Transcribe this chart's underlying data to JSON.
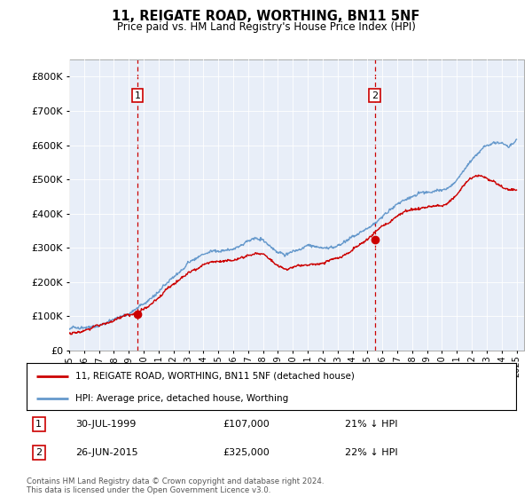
{
  "title": "11, REIGATE ROAD, WORTHING, BN11 5NF",
  "subtitle": "Price paid vs. HM Land Registry's House Price Index (HPI)",
  "legend_line1": "11, REIGATE ROAD, WORTHING, BN11 5NF (detached house)",
  "legend_line2": "HPI: Average price, detached house, Worthing",
  "transaction1": {
    "label": "1",
    "date": "30-JUL-1999",
    "price": 107000,
    "pct": "21% ↓ HPI",
    "x_year": 1999.58
  },
  "transaction2": {
    "label": "2",
    "date": "26-JUN-2015",
    "price": 325000,
    "pct": "22% ↓ HPI",
    "x_year": 2015.49
  },
  "footnote": "Contains HM Land Registry data © Crown copyright and database right 2024.\nThis data is licensed under the Open Government Licence v3.0.",
  "hpi_keypoints_x": [
    1995.0,
    1995.5,
    1996.0,
    1996.5,
    1997.0,
    1997.5,
    1998.0,
    1998.5,
    1999.0,
    1999.5,
    2000.0,
    2000.5,
    2001.0,
    2001.5,
    2002.0,
    2002.5,
    2003.0,
    2003.5,
    2004.0,
    2004.5,
    2005.0,
    2005.5,
    2006.0,
    2006.5,
    2007.0,
    2007.5,
    2008.0,
    2008.5,
    2009.0,
    2009.5,
    2010.0,
    2010.5,
    2011.0,
    2011.5,
    2012.0,
    2012.5,
    2013.0,
    2013.5,
    2014.0,
    2014.5,
    2015.0,
    2015.5,
    2016.0,
    2016.5,
    2017.0,
    2017.5,
    2018.0,
    2018.5,
    2019.0,
    2019.5,
    2020.0,
    2020.5,
    2021.0,
    2021.5,
    2022.0,
    2022.5,
    2023.0,
    2023.5,
    2024.0,
    2024.5,
    2025.0
  ],
  "hpi_keypoints_y": [
    63000,
    65000,
    70000,
    75000,
    82000,
    90000,
    98000,
    108000,
    118000,
    130000,
    145000,
    162000,
    180000,
    200000,
    218000,
    238000,
    255000,
    268000,
    280000,
    288000,
    292000,
    295000,
    298000,
    305000,
    315000,
    320000,
    318000,
    300000,
    278000,
    272000,
    280000,
    288000,
    292000,
    290000,
    290000,
    293000,
    298000,
    310000,
    325000,
    340000,
    358000,
    375000,
    395000,
    415000,
    430000,
    442000,
    450000,
    455000,
    460000,
    465000,
    468000,
    478000,
    498000,
    530000,
    560000,
    585000,
    605000,
    615000,
    608000,
    595000,
    615000
  ],
  "price_keypoints_x": [
    1995.0,
    1995.5,
    1996.0,
    1996.5,
    1997.0,
    1997.5,
    1998.0,
    1998.5,
    1999.0,
    1999.5,
    2000.0,
    2000.5,
    2001.0,
    2001.5,
    2002.0,
    2002.5,
    2003.0,
    2003.5,
    2004.0,
    2004.5,
    2005.0,
    2005.5,
    2006.0,
    2006.5,
    2007.0,
    2007.5,
    2008.0,
    2008.5,
    2009.0,
    2009.5,
    2010.0,
    2010.5,
    2011.0,
    2011.5,
    2012.0,
    2012.5,
    2013.0,
    2013.5,
    2014.0,
    2014.5,
    2015.0,
    2015.5,
    2016.0,
    2016.5,
    2017.0,
    2017.5,
    2018.0,
    2018.5,
    2019.0,
    2019.5,
    2020.0,
    2020.5,
    2021.0,
    2021.5,
    2022.0,
    2022.5,
    2023.0,
    2023.5,
    2024.0,
    2024.5,
    2025.0
  ],
  "price_keypoints_y": [
    50000,
    52000,
    56000,
    62000,
    68000,
    76000,
    84000,
    94000,
    103000,
    112000,
    122000,
    138000,
    155000,
    172000,
    188000,
    205000,
    220000,
    232000,
    242000,
    250000,
    255000,
    258000,
    262000,
    268000,
    278000,
    283000,
    280000,
    262000,
    244000,
    238000,
    245000,
    252000,
    255000,
    252000,
    252000,
    256000,
    262000,
    272000,
    285000,
    300000,
    315000,
    332000,
    350000,
    368000,
    383000,
    393000,
    400000,
    405000,
    410000,
    415000,
    418000,
    428000,
    450000,
    478000,
    498000,
    508000,
    498000,
    490000,
    482000,
    470000,
    472000
  ],
  "ylim": [
    0,
    850000
  ],
  "xlim_start": 1995.0,
  "xlim_end": 2025.5,
  "background_color": "#e8eef8",
  "hpi_color": "#6699cc",
  "price_color": "#cc0000",
  "vline_color": "#cc0000",
  "marker_color": "#cc0000",
  "yticks": [
    0,
    100000,
    200000,
    300000,
    400000,
    500000,
    600000,
    700000,
    800000
  ]
}
